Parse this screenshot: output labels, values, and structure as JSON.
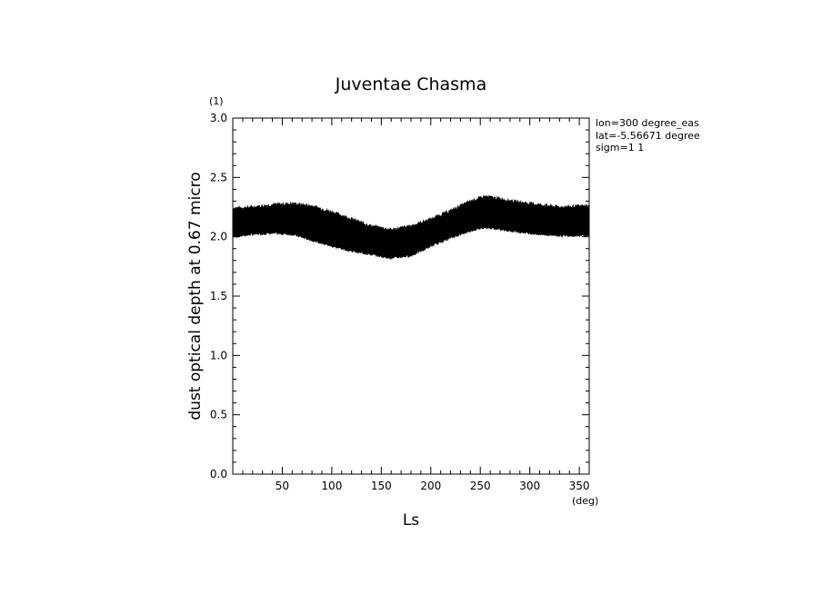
{
  "chart_data": {
    "type": "area",
    "title": "Juventae Chasma",
    "xlabel": "Ls",
    "ylabel": "dust optical depth at 0.67 micro",
    "x_unit": "(deg)",
    "y_unit": "(1)",
    "xlim": [
      0,
      360
    ],
    "ylim": [
      0.0,
      3.0
    ],
    "xticks": [
      50,
      100,
      150,
      200,
      250,
      300,
      350
    ],
    "xtick_labels": [
      "50",
      "100",
      "150",
      "200",
      "250",
      "300",
      "350"
    ],
    "yticks": [
      0.0,
      0.5,
      1.0,
      1.5,
      2.0,
      2.5,
      3.0
    ],
    "ytick_labels": [
      "0.0",
      "0.5",
      "1.0",
      "1.5",
      "2.0",
      "2.5",
      "3.0"
    ],
    "grid": false,
    "annotations": [
      "lon=300 degree_eas",
      "lat=-5.56671 degree",
      "sigm=1 1"
    ],
    "series": [
      {
        "x": [
          0,
          20,
          40,
          60,
          80,
          100,
          120,
          140,
          160,
          180,
          200,
          220,
          240,
          255,
          270,
          290,
          310,
          330,
          360
        ],
        "lower": [
          2.0,
          2.02,
          2.03,
          2.02,
          1.97,
          1.92,
          1.88,
          1.85,
          1.82,
          1.84,
          1.92,
          1.99,
          2.05,
          2.08,
          2.06,
          2.04,
          2.02,
          2.01,
          2.01
        ],
        "upper": [
          2.24,
          2.25,
          2.27,
          2.28,
          2.26,
          2.21,
          2.15,
          2.09,
          2.06,
          2.09,
          2.15,
          2.22,
          2.3,
          2.34,
          2.32,
          2.29,
          2.27,
          2.25,
          2.26
        ]
      }
    ]
  }
}
